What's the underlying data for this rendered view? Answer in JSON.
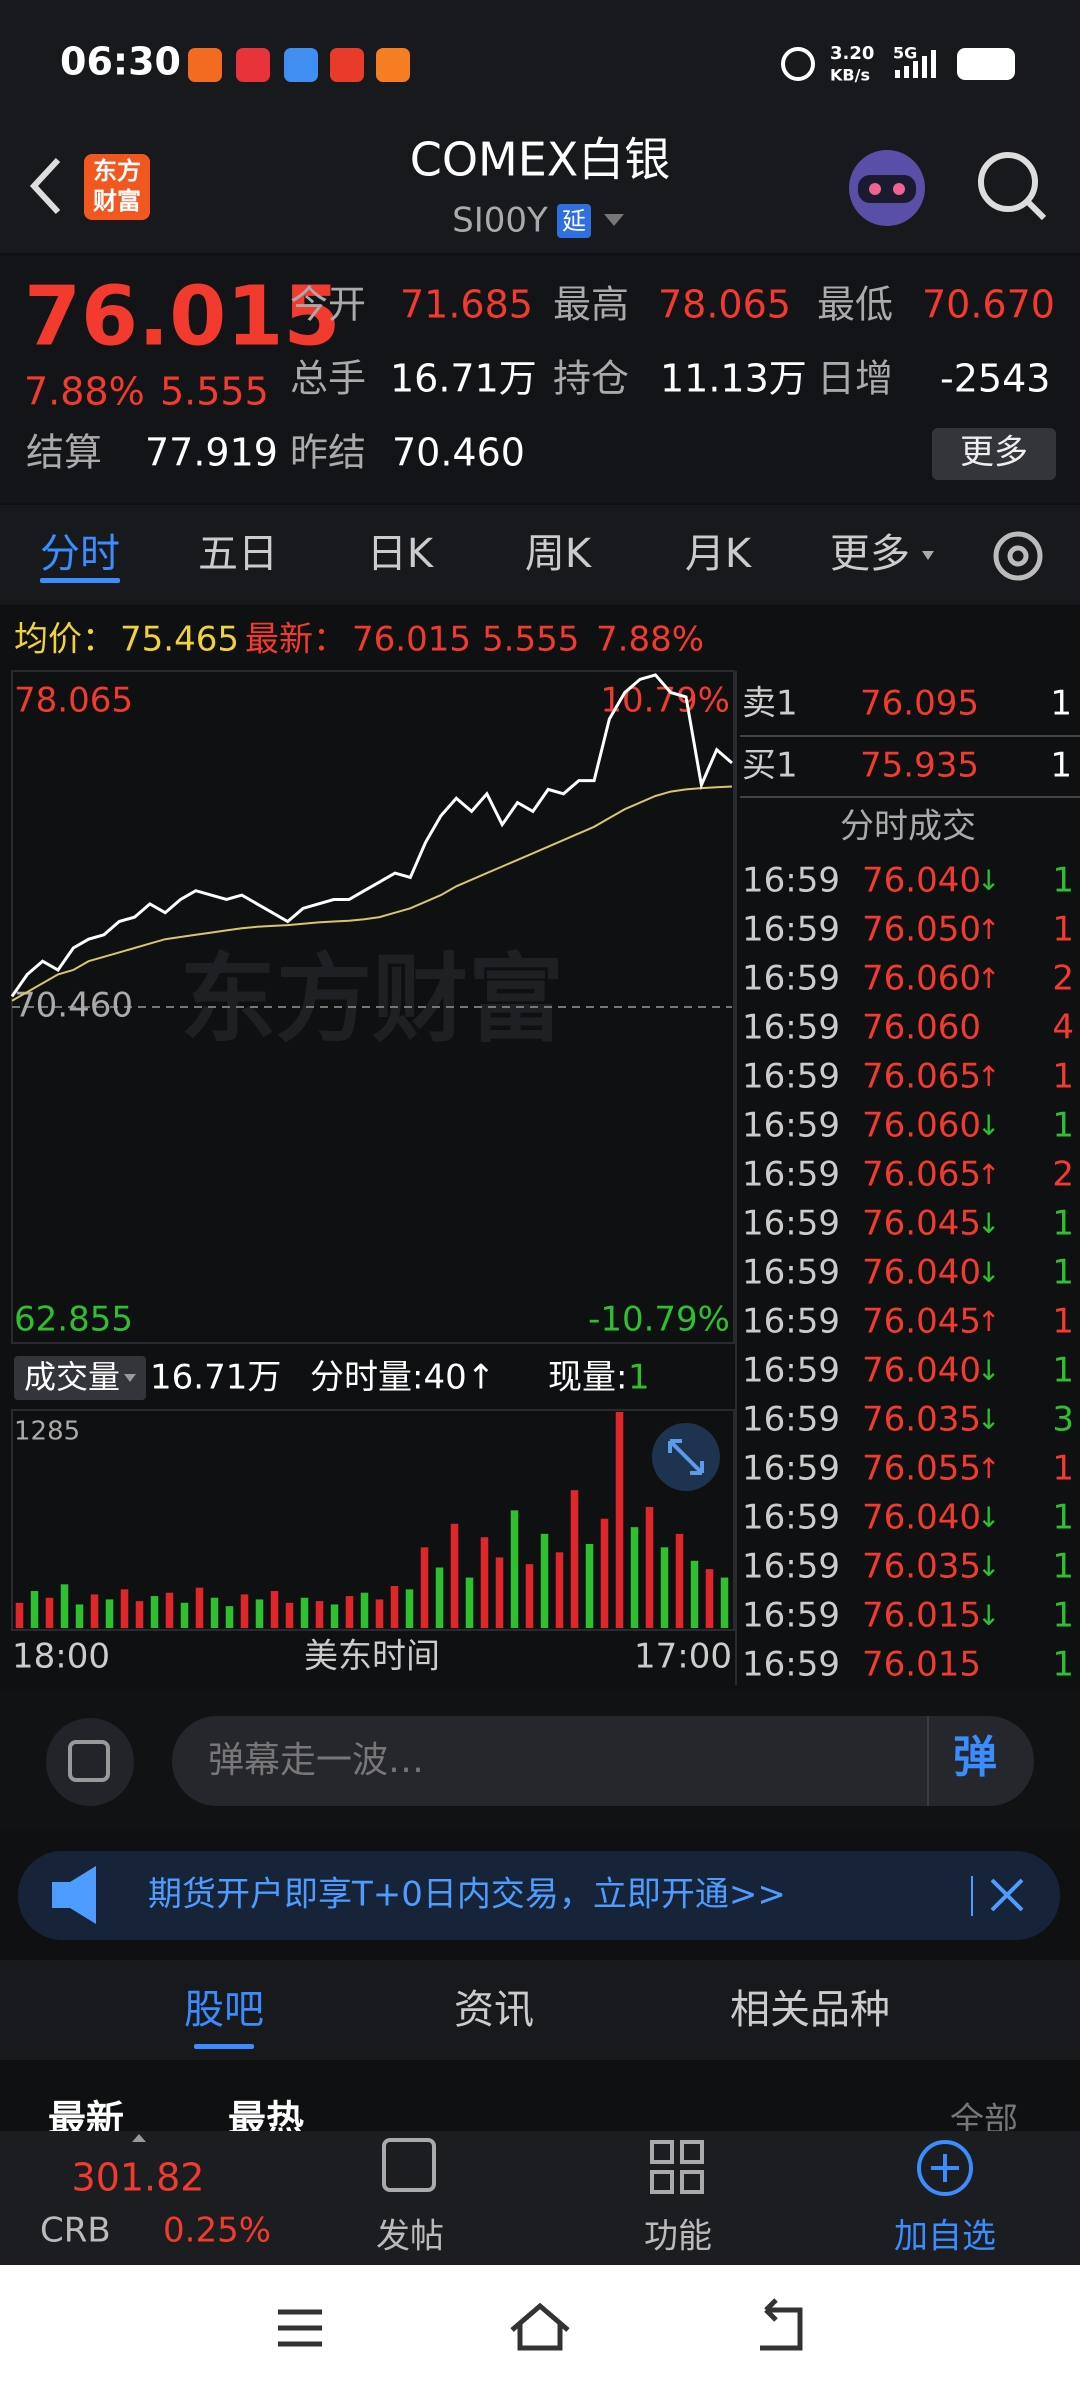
{
  "status_bar": {
    "time": "06:30",
    "net_speed": "3.20",
    "net_unit": "KB/s",
    "network": "5G"
  },
  "header": {
    "logo": [
      "东方",
      "财富"
    ],
    "title": "COMEX白银",
    "code": "SI00Y",
    "badge": "延"
  },
  "quote": {
    "price": "76.015",
    "change_pct": "7.88%",
    "change": "5.555",
    "fields": [
      {
        "label": "今开",
        "value": "71.685",
        "color": "#f23a2f"
      },
      {
        "label": "最高",
        "value": "78.065",
        "color": "#f23a2f"
      },
      {
        "label": "最低",
        "value": "70.670",
        "color": "#f23a2f"
      },
      {
        "label": "总手",
        "value": "16.71万",
        "color": "#ffffff"
      },
      {
        "label": "持仓",
        "value": "11.13万",
        "color": "#ffffff"
      },
      {
        "label": "日增",
        "value": "-2543",
        "color": "#ffffff"
      },
      {
        "label": "结算",
        "value": "77.919",
        "color": "#ffffff"
      },
      {
        "label": "昨结",
        "value": "70.460",
        "color": "#ffffff"
      }
    ],
    "more": "更多"
  },
  "tabs": [
    "分时",
    "五日",
    "日K",
    "周K",
    "月K",
    "更多"
  ],
  "summary": {
    "avg_label": "均价：",
    "avg": "75.465",
    "last_label": "最新：",
    "last": "76.015",
    "change": "5.555",
    "pct": "7.88%"
  },
  "chart_data": {
    "type": "line",
    "ylim": [
      62.855,
      78.065
    ],
    "yticks": [
      62.855,
      {
        "value": 70.46,
        "label": "70.460"
      },
      78.065
    ],
    "pct_labels": [
      "10.79%",
      "-10.79%"
    ],
    "series": [
      {
        "color": "#ffffff",
        "values": [
          70.7,
          71.2,
          71.5,
          71.3,
          71.8,
          72.0,
          72.1,
          72.4,
          72.5,
          72.8,
          72.6,
          72.9,
          73.1,
          73.0,
          72.9,
          73.0,
          72.8,
          72.6,
          72.4,
          72.7,
          72.8,
          72.9,
          72.9,
          73.1,
          73.3,
          73.5,
          73.4,
          74.2,
          74.8,
          75.2,
          74.9,
          75.3,
          74.6,
          75.1,
          74.9,
          75.4,
          75.3,
          75.6,
          75.6,
          77.0,
          77.6,
          77.9,
          78.0,
          77.6,
          77.5,
          75.5,
          76.3,
          76.0
        ]
      },
      {
        "color": "#d8c66a",
        "values": [
          70.6,
          70.8,
          71.0,
          71.2,
          71.3,
          71.5,
          71.6,
          71.7,
          71.8,
          71.9,
          72.0,
          72.05,
          72.1,
          72.15,
          72.2,
          72.25,
          72.28,
          72.3,
          72.32,
          72.35,
          72.38,
          72.4,
          72.42,
          72.45,
          72.5,
          72.6,
          72.7,
          72.85,
          73.0,
          73.2,
          73.35,
          73.5,
          73.65,
          73.8,
          73.95,
          74.1,
          74.25,
          74.4,
          74.55,
          74.75,
          74.95,
          75.1,
          75.25,
          75.35,
          75.4,
          75.43,
          75.45,
          75.465
        ]
      }
    ]
  },
  "volume": {
    "type": "bar",
    "label": "成交量",
    "total": "16.71万",
    "tick_volume": "分时量:40↑",
    "current_label": "现量:",
    "current": "1",
    "ylim": [
      0,
      1285
    ],
    "yticks": [
      1285
    ],
    "values": [
      150,
      220,
      180,
      260,
      140,
      200,
      170,
      230,
      160,
      190,
      210,
      150,
      240,
      180,
      130,
      200,
      170,
      220,
      150,
      180,
      160,
      140,
      190,
      210,
      170,
      250,
      230,
      480,
      360,
      620,
      300,
      540,
      420,
      700,
      380,
      560,
      450,
      820,
      500,
      650,
      1285,
      600,
      720,
      480,
      560,
      400,
      350,
      300
    ],
    "colors": [
      "#e0262a",
      "#2fc02f",
      "#e0262a",
      "#2fc02f",
      "#2fc02f",
      "#e0262a",
      "#2fc02f",
      "#e0262a",
      "#e0262a",
      "#2fc02f",
      "#e0262a",
      "#2fc02f",
      "#e0262a",
      "#2fc02f",
      "#2fc02f",
      "#e0262a",
      "#2fc02f",
      "#e0262a",
      "#e0262a",
      "#2fc02f",
      "#e0262a",
      "#2fc02f",
      "#e0262a",
      "#2fc02f",
      "#e0262a",
      "#e0262a",
      "#2fc02f",
      "#e0262a",
      "#2fc02f",
      "#e0262a",
      "#2fc02f",
      "#e0262a",
      "#e0262a",
      "#2fc02f",
      "#e0262a",
      "#2fc02f",
      "#e0262a",
      "#e0262a",
      "#2fc02f",
      "#e0262a",
      "#e0262a",
      "#2fc02f",
      "#e0262a",
      "#2fc02f",
      "#e0262a",
      "#2fc02f",
      "#e0262a",
      "#2fc02f"
    ],
    "x_labels": [
      "18:00",
      "美东时间",
      "17:00"
    ]
  },
  "order_book": {
    "asks": [
      {
        "label": "卖1",
        "price": "76.095",
        "qty": "1"
      }
    ],
    "bids": [
      {
        "label": "买1",
        "price": "75.935",
        "qty": "1"
      }
    ],
    "trades_title": "分时成交",
    "trades": [
      {
        "time": "16:59",
        "price": "76.040",
        "dir": "↓",
        "qty": "1",
        "qty_color": "#2fc02f"
      },
      {
        "time": "16:59",
        "price": "76.050",
        "dir": "↑",
        "qty": "1",
        "qty_color": "#f23a2f"
      },
      {
        "time": "16:59",
        "price": "76.060",
        "dir": "↑",
        "qty": "2",
        "qty_color": "#f23a2f"
      },
      {
        "time": "16:59",
        "price": "76.060",
        "qty": "4",
        "qty_color": "#f23a2f"
      },
      {
        "time": "16:59",
        "price": "76.065",
        "dir": "↑",
        "qty": "1",
        "qty_color": "#f23a2f"
      },
      {
        "time": "16:59",
        "price": "76.060",
        "dir": "↓",
        "qty": "1",
        "qty_color": "#2fc02f"
      },
      {
        "time": "16:59",
        "price": "76.065",
        "dir": "↑",
        "qty": "2",
        "qty_color": "#f23a2f"
      },
      {
        "time": "16:59",
        "price": "76.045",
        "dir": "↓",
        "qty": "1",
        "qty_color": "#2fc02f"
      },
      {
        "time": "16:59",
        "price": "76.040",
        "dir": "↓",
        "qty": "1",
        "qty_color": "#2fc02f"
      },
      {
        "time": "16:59",
        "price": "76.045",
        "dir": "↑",
        "qty": "1",
        "qty_color": "#f23a2f"
      },
      {
        "time": "16:59",
        "price": "76.040",
        "dir": "↓",
        "qty": "1",
        "qty_color": "#2fc02f"
      },
      {
        "time": "16:59",
        "price": "76.035",
        "dir": "↓",
        "qty": "3",
        "qty_color": "#2fc02f"
      },
      {
        "time": "16:59",
        "price": "76.055",
        "dir": "↑",
        "qty": "1",
        "qty_color": "#f23a2f"
      },
      {
        "time": "16:59",
        "price": "76.040",
        "dir": "↓",
        "qty": "1",
        "qty_color": "#2fc02f"
      },
      {
        "time": "16:59",
        "price": "76.035",
        "dir": "↓",
        "qty": "1",
        "qty_color": "#2fc02f"
      },
      {
        "time": "16:59",
        "price": "76.015",
        "dir": "↓",
        "qty": "1",
        "qty_color": "#2fc02f"
      },
      {
        "time": "16:59",
        "price": "76.015",
        "qty": "1",
        "qty_color": "#2fc02f"
      }
    ]
  },
  "comment": {
    "placeholder": "弹幕走一波…",
    "button": "弹"
  },
  "banner": {
    "text": "期货开户即享T+0日内交易，立即开通>>"
  },
  "section_tabs": [
    "股吧",
    "资讯",
    "相关品种"
  ],
  "feed_filters": {
    "latest": "最新",
    "hot": "最热",
    "all": "全部"
  },
  "bottom_bar": {
    "index_value": "301.82",
    "index_name": "CRB",
    "index_change": "0.25%",
    "actions": [
      "发帖",
      "功能",
      "加自选"
    ]
  }
}
